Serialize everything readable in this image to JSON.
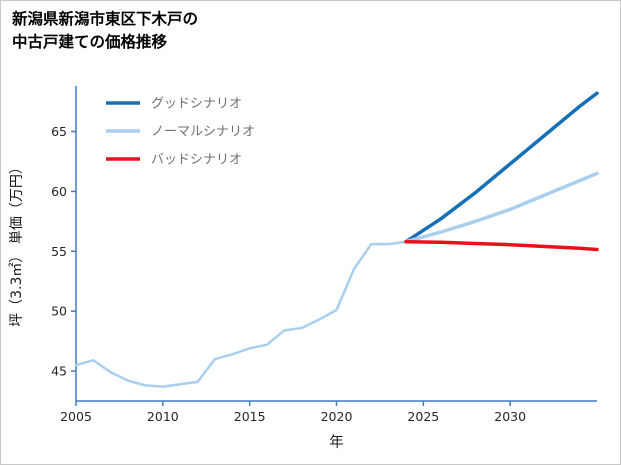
{
  "chart_data": {
    "type": "line",
    "title": "新潟県新潟市東区下木戸の中古戸建ての価格推移",
    "title_display": "新潟県新潟市東区下木戸の\n中古戸建ての価格推移",
    "xlabel": "年",
    "ylabel": "坪（3.3㎡） 単価（万円）",
    "xlim": [
      2005,
      2035
    ],
    "ylim": [
      42.5,
      68.8
    ],
    "xticks": [
      2005,
      2010,
      2015,
      2020,
      2025,
      2030
    ],
    "yticks": [
      45,
      50,
      55,
      60,
      65
    ],
    "grid": false,
    "legend_position": "upper-left",
    "colors": {
      "axis": "#3f7cc0",
      "tick_label": "#262626",
      "axis_label": "#1a1a1a",
      "legend_text": "#707070",
      "good": "#1670b8",
      "normal": "#a8cef0",
      "bad": "#e8131a"
    },
    "legend": [
      {
        "label": "グッドシナリオ",
        "color": "#1670b8"
      },
      {
        "label": "ノーマルシナリオ",
        "color": "#a8cef0"
      },
      {
        "label": "バッドシナリオ",
        "color": "#e8131a"
      }
    ],
    "series": [
      {
        "name": "historical",
        "color": "#a8cef0",
        "width": 2.5,
        "x": [
          2005,
          2006,
          2007,
          2008,
          2009,
          2010,
          2011,
          2012,
          2013,
          2014,
          2015,
          2016,
          2017,
          2018,
          2019,
          2020,
          2021,
          2022,
          2023,
          2024
        ],
        "y": [
          45.5,
          45.9,
          44.9,
          44.2,
          43.8,
          43.7,
          43.9,
          44.1,
          46.0,
          46.4,
          46.9,
          47.2,
          48.4,
          48.6,
          49.3,
          50.1,
          53.5,
          55.6,
          55.6,
          55.8
        ]
      },
      {
        "name": "グッドシナリオ",
        "color": "#1670b8",
        "width": 3.5,
        "x": [
          2024,
          2026,
          2028,
          2030,
          2032,
          2034,
          2035
        ],
        "y": [
          55.8,
          57.7,
          59.9,
          62.3,
          64.7,
          67.1,
          68.2
        ]
      },
      {
        "name": "ノーマルシナリオ",
        "color": "#a8cef0",
        "width": 3.5,
        "x": [
          2024,
          2026,
          2028,
          2030,
          2032,
          2034,
          2035
        ],
        "y": [
          55.8,
          56.6,
          57.5,
          58.5,
          59.7,
          60.9,
          61.5
        ]
      },
      {
        "name": "バッドシナリオ",
        "color": "#e8131a",
        "width": 3.5,
        "x": [
          2024,
          2026,
          2028,
          2030,
          2032,
          2034,
          2035
        ],
        "y": [
          55.8,
          55.75,
          55.65,
          55.55,
          55.4,
          55.25,
          55.15
        ]
      }
    ]
  }
}
